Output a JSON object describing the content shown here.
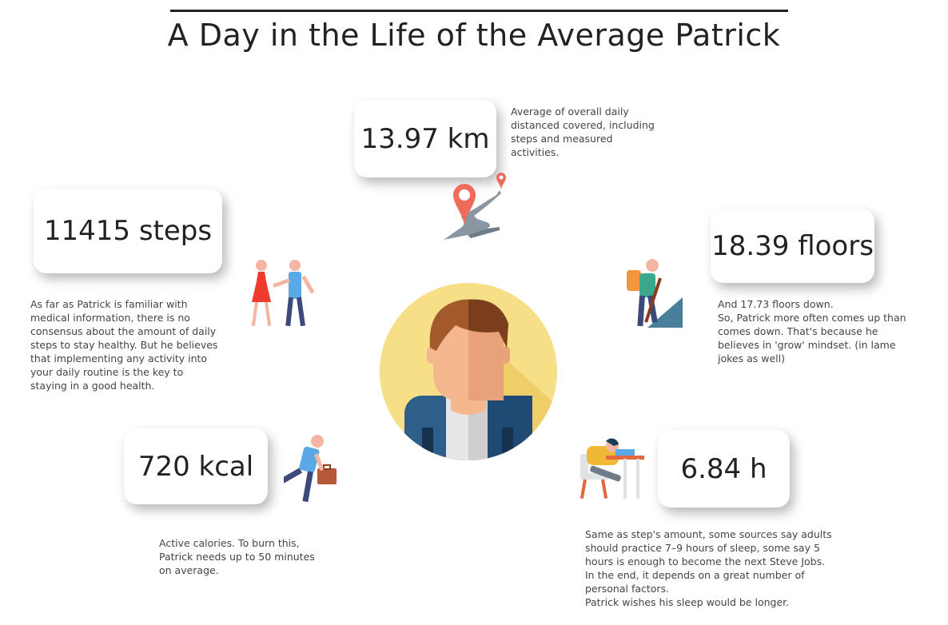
{
  "title": "A Day in the Life of the Average Patrick",
  "colors": {
    "accent_yellow": "#f6df86",
    "hair": "#a35a2a",
    "jacket": "#2d5f8a",
    "pin": "#ef6b5a"
  },
  "distance": {
    "value": "13.97 km",
    "desc": "Average of overall daily distanced covered, including steps and measured activities.",
    "icon": "map-pin-road-icon"
  },
  "steps": {
    "value": "11415 steps",
    "desc": "As far as Patrick is familiar with medical information, there is no consensus about the amount of daily steps to stay healthy. But he believes that implementing any activity into your daily routine is the key to staying in a good health.",
    "icon": "walking-couple-icon"
  },
  "floors": {
    "value": "18.39 floors",
    "desc_lines": [
      "And 17.73 floors down.",
      "So, Patrick more often comes up than comes down. That's because he believes in 'grow' mindset. (in lame jokes as well)"
    ],
    "icon": "hiker-icon"
  },
  "calories": {
    "value": "720 kcal",
    "desc": "Active calories. To burn this, Patrick needs up to 50 minutes on average.",
    "icon": "running-man-briefcase-icon"
  },
  "sleep": {
    "value": "6.84 h",
    "desc_lines": [
      "Same as step's amount, some sources say adults should practice 7–9 hours of sleep, some say 5 hours is enough to become the next Steve Jobs.",
      "In the end, it depends on a great number of personal factors.",
      "Patrick wishes his sleep would be longer."
    ],
    "icon": "sleeping-at-desk-icon"
  },
  "avatar": {
    "icon": "person-avatar-icon"
  }
}
